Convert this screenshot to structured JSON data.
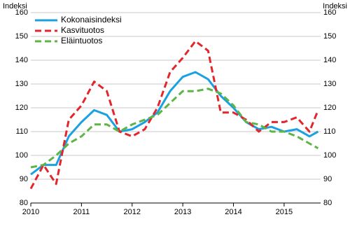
{
  "chart_data": {
    "type": "line",
    "y_label": "Indeksi",
    "y2_label": "Indeksi",
    "x": [
      2010,
      2010.25,
      2010.5,
      2010.75,
      2011,
      2011.25,
      2011.5,
      2011.75,
      2012,
      2012.25,
      2012.5,
      2012.75,
      2013,
      2013.25,
      2013.5,
      2013.75,
      2014,
      2014.25,
      2014.5,
      2014.75,
      2015,
      2015.25,
      2015.5,
      2015.67
    ],
    "series": [
      {
        "name": "Kokonaisindeksi",
        "color": "#1ba1e2",
        "dashed": false,
        "values": [
          92,
          96,
          96,
          108,
          114,
          119,
          117,
          110,
          111,
          114,
          118,
          127,
          133,
          135,
          132,
          125,
          120,
          114,
          111,
          112,
          110,
          111,
          108,
          110
        ]
      },
      {
        "name": "Kasvituotos",
        "color": "#e3262d",
        "dashed": true,
        "values": [
          86,
          96,
          88,
          115,
          121,
          131,
          127,
          110,
          108,
          111,
          120,
          135,
          141,
          148,
          144,
          118,
          118,
          115,
          110,
          114,
          114,
          116,
          110,
          119
        ]
      },
      {
        "name": "Eläintuotos",
        "color": "#5cb545",
        "dashed": true,
        "values": [
          95,
          96,
          100,
          105,
          108,
          113,
          113,
          110,
          113,
          115,
          117,
          122,
          127,
          127,
          128,
          126,
          121,
          114,
          113,
          110,
          110,
          108,
          105,
          103
        ]
      }
    ],
    "xlim": [
      2010,
      2015.72
    ],
    "xticks": [
      2010,
      2011,
      2012,
      2013,
      2014,
      2015
    ],
    "ylim": [
      80,
      160
    ],
    "yticks": [
      80,
      90,
      100,
      110,
      120,
      130,
      140,
      150,
      160
    ],
    "grid": true,
    "legend": "upper left"
  }
}
